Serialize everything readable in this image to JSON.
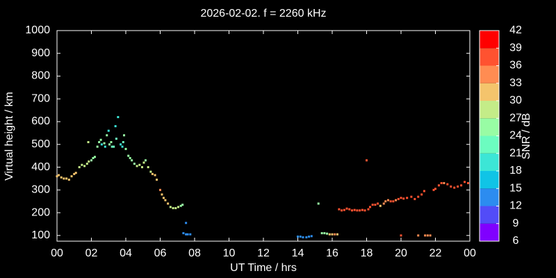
{
  "chart_data": {
    "type": "scatter",
    "title": "2026-02-02. f = 2260 kHz",
    "xlabel": "UT Time / hrs",
    "ylabel": "Virtual height / km",
    "xlim": [
      0,
      24
    ],
    "xticks": [
      {
        "value": 0,
        "label": "00"
      },
      {
        "value": 2,
        "label": "02"
      },
      {
        "value": 4,
        "label": "04"
      },
      {
        "value": 6,
        "label": "06"
      },
      {
        "value": 8,
        "label": "08"
      },
      10,
      12,
      14,
      16,
      18,
      20,
      22,
      {
        "value": 24,
        "label": "00"
      }
    ],
    "ylim": [
      75,
      1000
    ],
    "yticks": [
      100,
      200,
      300,
      400,
      500,
      600,
      700,
      800,
      900,
      1000
    ],
    "colorbar": {
      "label": "SNR / dB",
      "ticks": [
        6,
        9,
        12,
        15,
        18,
        21,
        24,
        27,
        30,
        33,
        36,
        39,
        42
      ],
      "colors": [
        "#8000ff",
        "#524cf8",
        "#2c8cf0",
        "#10c4e6",
        "#3ce6d6",
        "#6cfcc0",
        "#98fca4",
        "#c4ec88",
        "#f4c46c",
        "#ff8c52",
        "#ff5230",
        "#ff0000"
      ]
    },
    "x": [
      0.0,
      0.1,
      0.25,
      0.4,
      0.55,
      0.7,
      0.85,
      1.0,
      1.1,
      1.3,
      1.45,
      1.6,
      1.75,
      1.85,
      1.82,
      2.0,
      2.1,
      2.2,
      2.35,
      2.45,
      2.55,
      2.6,
      2.75,
      2.8,
      2.9,
      3.0,
      3.05,
      3.15,
      3.2,
      3.3,
      3.4,
      3.45,
      3.55,
      3.7,
      3.8,
      3.85,
      3.9,
      4.0,
      4.15,
      4.25,
      4.35,
      4.5,
      4.65,
      4.8,
      4.95,
      5.05,
      5.15,
      5.3,
      5.45,
      5.55,
      5.7,
      5.8,
      6.0,
      6.1,
      6.2,
      6.3,
      6.45,
      6.6,
      6.75,
      6.9,
      7.05,
      7.2,
      7.3,
      7.35,
      7.5,
      7.6,
      7.75,
      7.5,
      14.0,
      14.15,
      14.3,
      14.5,
      14.65,
      14.8,
      15.2,
      15.4,
      15.55,
      15.7,
      15.85,
      16.0,
      16.15,
      16.3,
      16.4,
      16.55,
      16.7,
      16.85,
      17.0,
      17.15,
      17.3,
      17.45,
      17.6,
      17.75,
      17.9,
      18.0,
      18.1,
      18.2,
      18.35,
      18.5,
      18.65,
      18.8,
      19.0,
      19.1,
      19.25,
      19.4,
      19.55,
      19.7,
      19.85,
      20.0,
      20.15,
      20.35,
      20.6,
      20.8,
      21.0,
      21.2,
      21.35,
      20.0,
      21.0,
      21.4,
      21.55,
      21.7,
      21.9,
      22.0,
      22.2,
      22.35,
      22.5,
      22.7,
      22.9,
      23.1,
      23.3,
      23.5,
      23.7,
      23.9
    ],
    "y": [
      360,
      365,
      355,
      350,
      350,
      345,
      360,
      370,
      375,
      400,
      410,
      405,
      415,
      425,
      510,
      430,
      440,
      445,
      490,
      510,
      520,
      500,
      505,
      490,
      540,
      560,
      500,
      510,
      490,
      490,
      580,
      525,
      620,
      500,
      490,
      510,
      540,
      480,
      450,
      440,
      430,
      415,
      405,
      410,
      400,
      420,
      430,
      400,
      380,
      370,
      365,
      345,
      300,
      280,
      265,
      255,
      240,
      225,
      220,
      220,
      225,
      230,
      235,
      110,
      105,
      105,
      105,
      155,
      95,
      95,
      92,
      92,
      95,
      97,
      240,
      110,
      110,
      108,
      105,
      105,
      105,
      105,
      215,
      210,
      212,
      218,
      215,
      210,
      212,
      210,
      210,
      212,
      210,
      430,
      215,
      225,
      235,
      235,
      240,
      230,
      240,
      250,
      255,
      250,
      250,
      255,
      260,
      265,
      262,
      265,
      270,
      260,
      270,
      280,
      295,
      100,
      100,
      100,
      100,
      100,
      300,
      305,
      320,
      330,
      330,
      325,
      315,
      310,
      315,
      320,
      335,
      330
    ],
    "snr": [
      30,
      30,
      30,
      30,
      30,
      30,
      30,
      30,
      30,
      27,
      27,
      27,
      27,
      27,
      27,
      26,
      26,
      26,
      25,
      24,
      24,
      20,
      24,
      18,
      24,
      20,
      24,
      24,
      22,
      22,
      20,
      22,
      20,
      20,
      20,
      22,
      24,
      24,
      25,
      25,
      26,
      26,
      27,
      27,
      27,
      27,
      26,
      27,
      28,
      30,
      30,
      30,
      34,
      32,
      30,
      30,
      30,
      28,
      28,
      28,
      27,
      26,
      26,
      14,
      14,
      13,
      13,
      13,
      13,
      12,
      13,
      12,
      13,
      12,
      25,
      25,
      24,
      24,
      32,
      32,
      33,
      32,
      38,
      38,
      38,
      38,
      38,
      38,
      38,
      38,
      38,
      38,
      37,
      37,
      38,
      38,
      38,
      38,
      37,
      30,
      34,
      34,
      34,
      36,
      36,
      34,
      37,
      37,
      37,
      38,
      38,
      38,
      38,
      37,
      37,
      38,
      34,
      34,
      34,
      34,
      38,
      37,
      37,
      36,
      35,
      36,
      37,
      37,
      38,
      37,
      37,
      36
    ]
  }
}
